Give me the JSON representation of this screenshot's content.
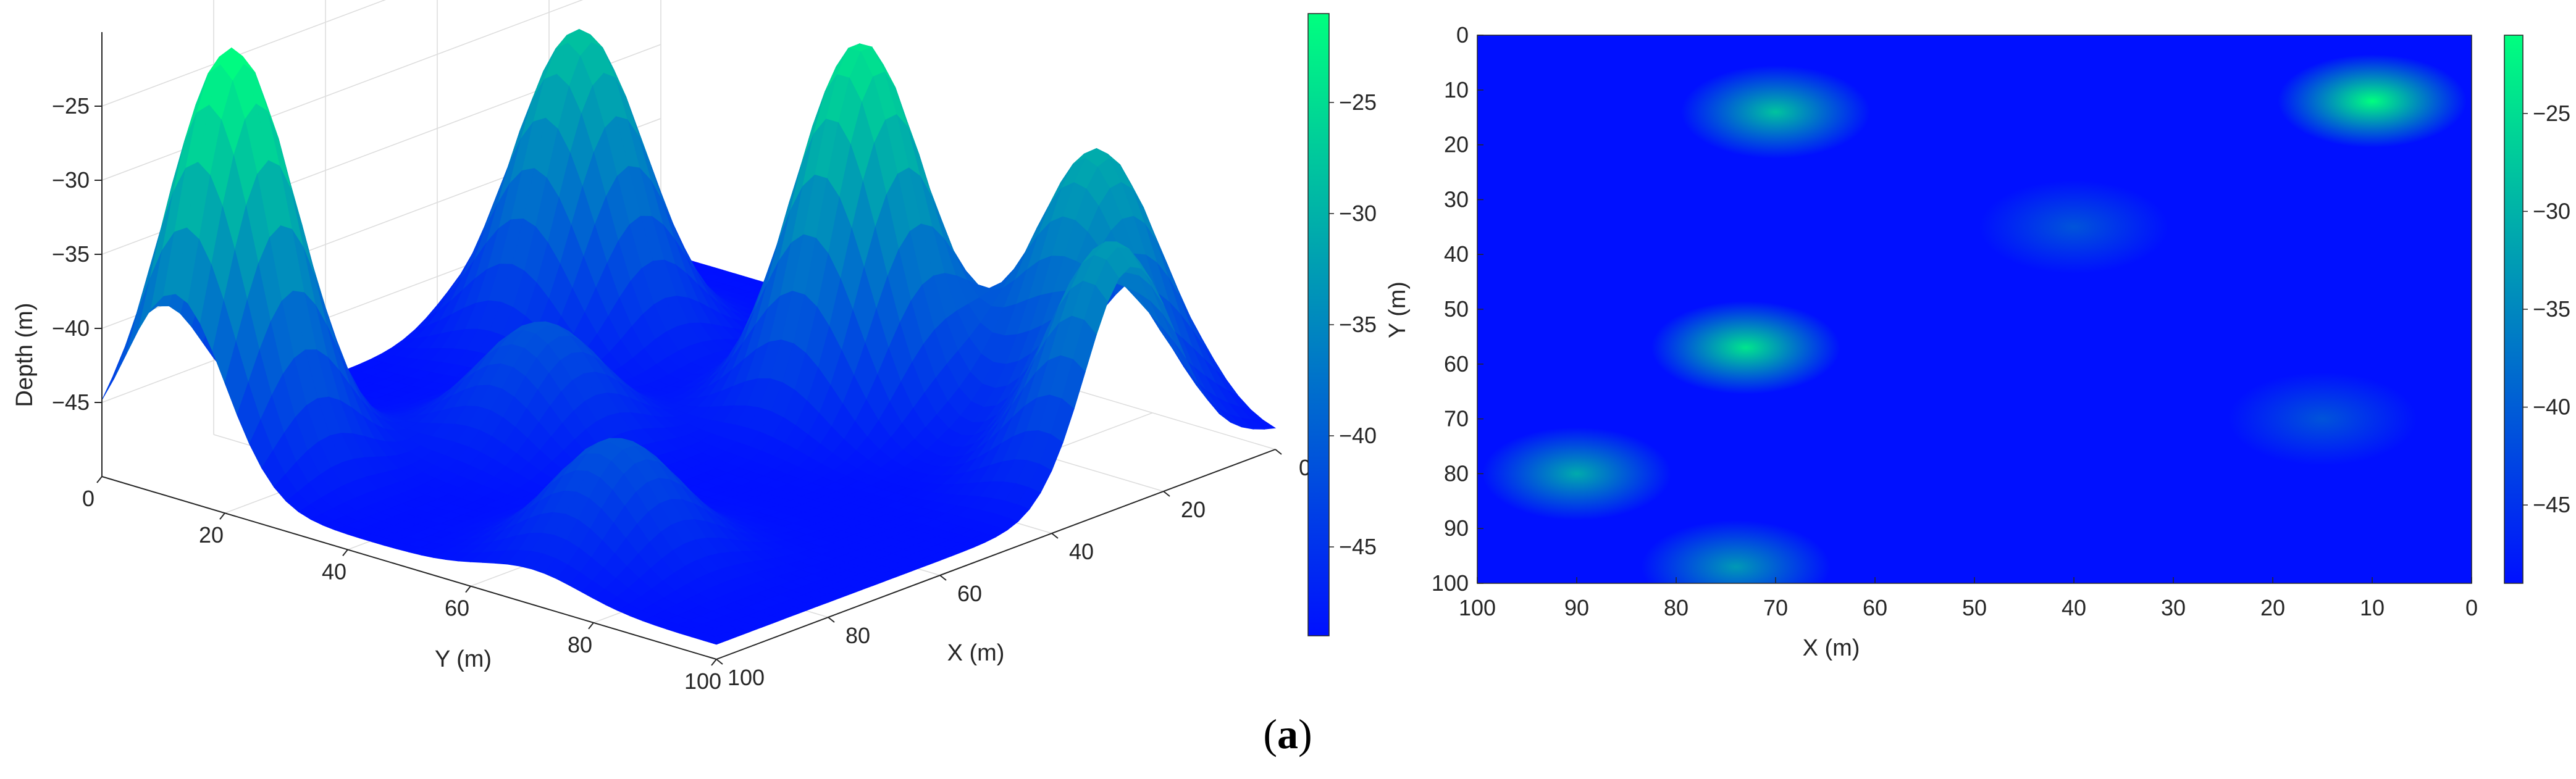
{
  "caption": {
    "open": "(",
    "letter": "a",
    "close": ")"
  },
  "colormap": {
    "low": "#0010ff",
    "high": "#00ff7f"
  },
  "chart_data": [
    {
      "type": "surface",
      "xlabel": "X (m)",
      "ylabel": "Y (m)",
      "zlabel": "Depth (m)",
      "xlim": [
        0,
        100
      ],
      "ylim": [
        0,
        100
      ],
      "zlim": [
        -50,
        -20
      ],
      "xticks": [
        "0",
        "20",
        "40",
        "60",
        "80",
        "100"
      ],
      "yticks": [
        "0",
        "20",
        "40",
        "60",
        "80",
        "100"
      ],
      "zticks": [
        "-25",
        "-30",
        "-35",
        "-40",
        "-45"
      ],
      "colorbar_ticks": [
        "-25",
        "-30",
        "-35",
        "-40",
        "-45"
      ],
      "colorbar_range": [
        -49,
        -21
      ],
      "grid": true,
      "base_depth": -49,
      "peaks": [
        {
          "x": 10,
          "y": 12,
          "depth": -21
        },
        {
          "x": 73,
          "y": 57,
          "depth": -24
        },
        {
          "x": 70,
          "y": 14,
          "depth": -28
        },
        {
          "x": 90,
          "y": 80,
          "depth": -31
        },
        {
          "x": 74,
          "y": 97,
          "depth": -33
        },
        {
          "x": 40,
          "y": 35,
          "depth": -41
        },
        {
          "x": 15,
          "y": 70,
          "depth": -41
        }
      ]
    },
    {
      "type": "heatmap",
      "xlabel": "X (m)",
      "ylabel": "Y (m)",
      "xlim": [
        100,
        0
      ],
      "ylim": [
        0,
        100
      ],
      "xticks": [
        "100",
        "90",
        "80",
        "70",
        "60",
        "50",
        "40",
        "30",
        "20",
        "10",
        "0"
      ],
      "yticks": [
        "0",
        "10",
        "20",
        "30",
        "40",
        "50",
        "60",
        "70",
        "80",
        "90",
        "100"
      ],
      "colorbar_ticks": [
        "-25",
        "-30",
        "-35",
        "-40",
        "-45"
      ],
      "colorbar_range": [
        -49,
        -21
      ]
    }
  ]
}
